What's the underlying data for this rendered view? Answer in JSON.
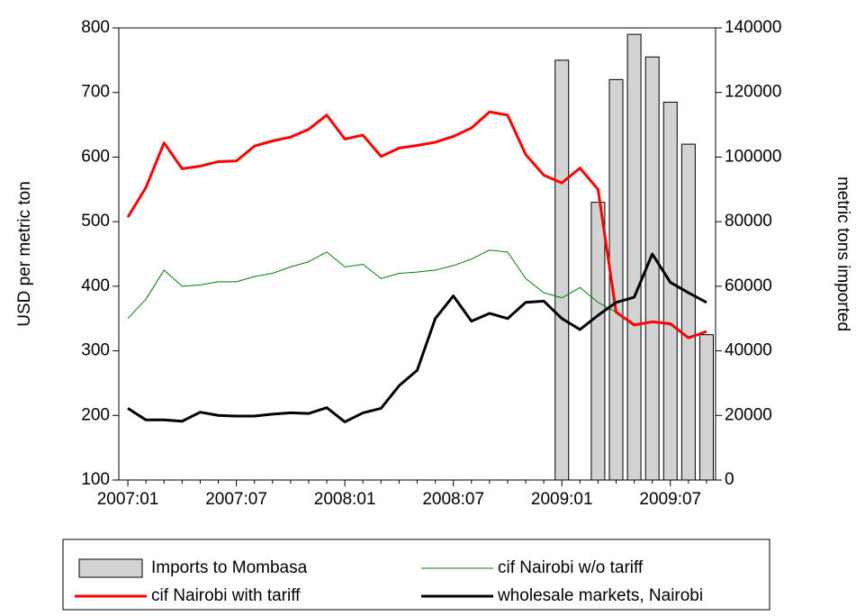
{
  "chart_data": {
    "type": "line",
    "ylabel": "USD per metric ton",
    "y2label": "metric tons imported",
    "categories": [
      "2007:01",
      null,
      null,
      null,
      null,
      null,
      "2007:07",
      null,
      null,
      null,
      null,
      null,
      "2008:01",
      null,
      null,
      null,
      null,
      null,
      "2008:07",
      null,
      null,
      null,
      null,
      null,
      "2009:01",
      null,
      null,
      null,
      null,
      null,
      "2009:07",
      null,
      null
    ],
    "ylim": [
      100,
      800
    ],
    "yticks": [
      100,
      200,
      300,
      400,
      500,
      600,
      700,
      800
    ],
    "y2lim": [
      0,
      140000
    ],
    "y2ticks": [
      0,
      20000,
      40000,
      60000,
      80000,
      100000,
      120000,
      140000
    ],
    "grid": false,
    "legend": "bottom",
    "series": [
      {
        "name": "Imports to Mombasa",
        "type": "bar",
        "axis": "y2",
        "color": "#d3d3d3",
        "values": [
          null,
          null,
          null,
          null,
          null,
          null,
          null,
          null,
          null,
          null,
          null,
          null,
          null,
          null,
          null,
          null,
          null,
          null,
          null,
          null,
          null,
          null,
          null,
          null,
          130000,
          null,
          86000,
          124000,
          138000,
          131000,
          117000,
          104000,
          45000
        ]
      },
      {
        "name": "cif Nairobi w/o tariff",
        "type": "line",
        "color": "#008000",
        "width": 1,
        "values": [
          350,
          380,
          425,
          400,
          402,
          407,
          407,
          415,
          420,
          430,
          438,
          453,
          430,
          434,
          412,
          420,
          422,
          425,
          432,
          442,
          456,
          453,
          412,
          390,
          382,
          398,
          375,
          360,
          342,
          345,
          340,
          322,
          330
        ]
      },
      {
        "name": "cif Nairobi with tariff",
        "type": "line",
        "color": "#ff0000",
        "width": 3,
        "values": [
          507,
          553,
          622,
          582,
          586,
          593,
          594,
          617,
          625,
          631,
          643,
          665,
          628,
          634,
          601,
          614,
          618,
          623,
          632,
          645,
          670,
          665,
          604,
          572,
          560,
          583,
          550,
          360,
          340,
          345,
          342,
          320,
          330
        ]
      },
      {
        "name": "wholesale markets, Nairobi",
        "type": "line",
        "color": "#000000",
        "width": 3,
        "values": [
          211,
          193,
          193,
          191,
          205,
          200,
          199,
          199,
          202,
          204,
          203,
          212,
          190,
          204,
          211,
          246,
          270,
          350,
          385,
          346,
          358,
          350,
          375,
          377,
          350,
          333,
          355,
          375,
          383,
          450,
          406,
          390,
          375
        ]
      }
    ]
  }
}
